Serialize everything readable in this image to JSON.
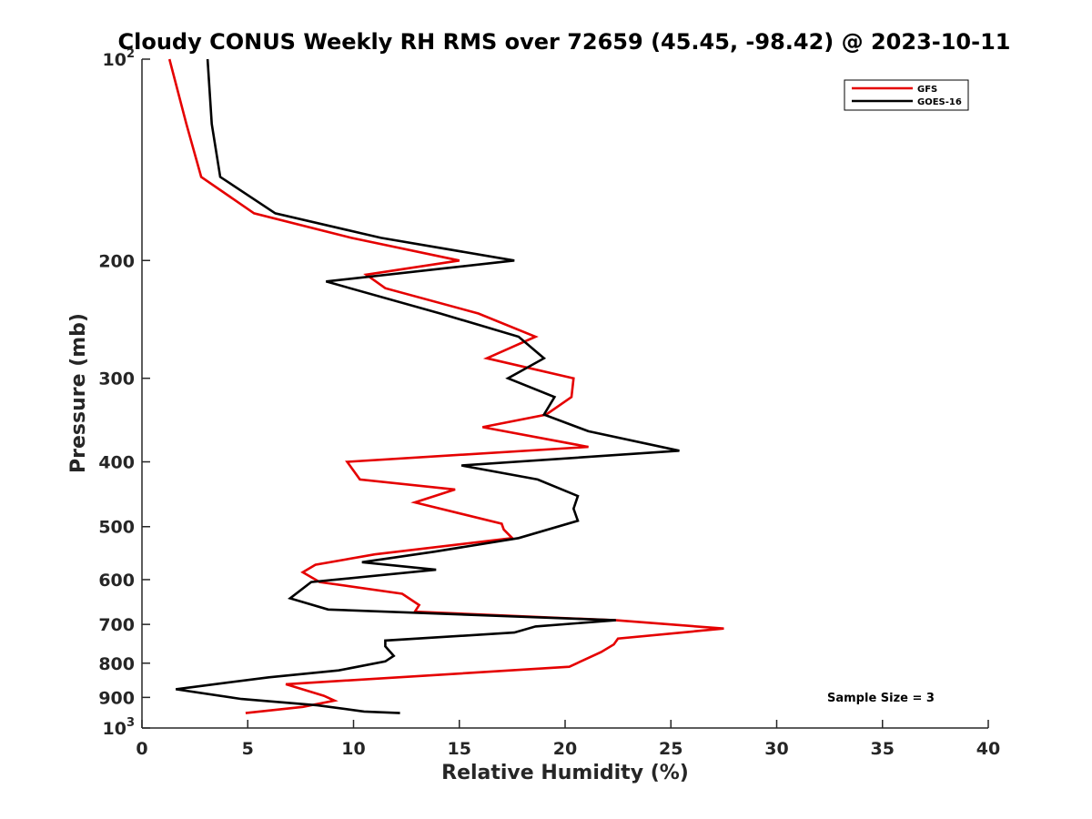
{
  "chart_data": {
    "type": "line",
    "title": "Cloudy CONUS Weekly RH RMS over 72659 (45.45, -98.42) @ 2023-10-11",
    "xlabel": "Relative Humidity (%)",
    "ylabel": "Pressure (mb)",
    "xlim": [
      0,
      40
    ],
    "ylim": [
      100,
      1000
    ],
    "y_scale": "log",
    "y_reversed": true,
    "x_ticks": [
      0,
      5,
      10,
      15,
      20,
      25,
      30,
      35,
      40
    ],
    "y_ticks": [
      {
        "value": 100,
        "base": "10",
        "exp": "2"
      },
      {
        "value": 200,
        "label": "200"
      },
      {
        "value": 300,
        "label": "300"
      },
      {
        "value": 400,
        "label": "400"
      },
      {
        "value": 500,
        "label": "500"
      },
      {
        "value": 600,
        "label": "600"
      },
      {
        "value": 700,
        "label": "700"
      },
      {
        "value": 800,
        "label": "800"
      },
      {
        "value": 900,
        "label": "900"
      },
      {
        "value": 1000,
        "base": "10",
        "exp": "3"
      }
    ],
    "grid": false,
    "legend_position": "top-right",
    "annotation": "Sample Size = 3",
    "series": [
      {
        "name": "GFS",
        "color": "#e50000",
        "points": [
          [
            1.3,
            100
          ],
          [
            2.1,
            125
          ],
          [
            2.8,
            150
          ],
          [
            5.3,
            170
          ],
          [
            9.9,
            185
          ],
          [
            15.0,
            200
          ],
          [
            10.6,
            210
          ],
          [
            11.5,
            220
          ],
          [
            15.9,
            240
          ],
          [
            18.6,
            260
          ],
          [
            16.3,
            280
          ],
          [
            20.4,
            300
          ],
          [
            20.3,
            320
          ],
          [
            19.1,
            340
          ],
          [
            16.1,
            355
          ],
          [
            21.1,
            380
          ],
          [
            9.7,
            400
          ],
          [
            10.3,
            425
          ],
          [
            14.8,
            440
          ],
          [
            12.9,
            460
          ],
          [
            17.0,
            495
          ],
          [
            17.1,
            505
          ],
          [
            17.5,
            520
          ],
          [
            11.0,
            550
          ],
          [
            8.2,
            570
          ],
          [
            7.6,
            585
          ],
          [
            8.4,
            605
          ],
          [
            12.3,
            630
          ],
          [
            13.1,
            655
          ],
          [
            12.9,
            670
          ],
          [
            22.4,
            690
          ],
          [
            27.5,
            710
          ],
          [
            22.5,
            735
          ],
          [
            22.3,
            750
          ],
          [
            21.7,
            770
          ],
          [
            20.2,
            810
          ],
          [
            6.8,
            860
          ],
          [
            8.6,
            895
          ],
          [
            9.1,
            910
          ],
          [
            7.6,
            930
          ],
          [
            4.9,
            950
          ]
        ]
      },
      {
        "name": "GOES-16",
        "color": "#000000",
        "points": [
          [
            3.1,
            100
          ],
          [
            3.3,
            125
          ],
          [
            3.7,
            150
          ],
          [
            6.3,
            170
          ],
          [
            11.3,
            185
          ],
          [
            17.6,
            200
          ],
          [
            8.7,
            215
          ],
          [
            14.1,
            240
          ],
          [
            17.8,
            260
          ],
          [
            19.0,
            280
          ],
          [
            17.3,
            300
          ],
          [
            19.5,
            320
          ],
          [
            19.0,
            340
          ],
          [
            21.1,
            360
          ],
          [
            25.4,
            385
          ],
          [
            15.1,
            405
          ],
          [
            18.7,
            425
          ],
          [
            20.6,
            450
          ],
          [
            20.4,
            470
          ],
          [
            20.6,
            490
          ],
          [
            17.8,
            520
          ],
          [
            13.8,
            545
          ],
          [
            10.4,
            565
          ],
          [
            13.9,
            580
          ],
          [
            8.0,
            605
          ],
          [
            7.0,
            640
          ],
          [
            8.8,
            665
          ],
          [
            22.4,
            690
          ],
          [
            18.6,
            705
          ],
          [
            17.6,
            720
          ],
          [
            11.5,
            740
          ],
          [
            11.5,
            755
          ],
          [
            11.9,
            780
          ],
          [
            11.5,
            795
          ],
          [
            9.3,
            820
          ],
          [
            6.0,
            840
          ],
          [
            1.6,
            875
          ],
          [
            4.7,
            905
          ],
          [
            8.3,
            925
          ],
          [
            10.5,
            945
          ],
          [
            12.2,
            950
          ]
        ]
      }
    ]
  }
}
